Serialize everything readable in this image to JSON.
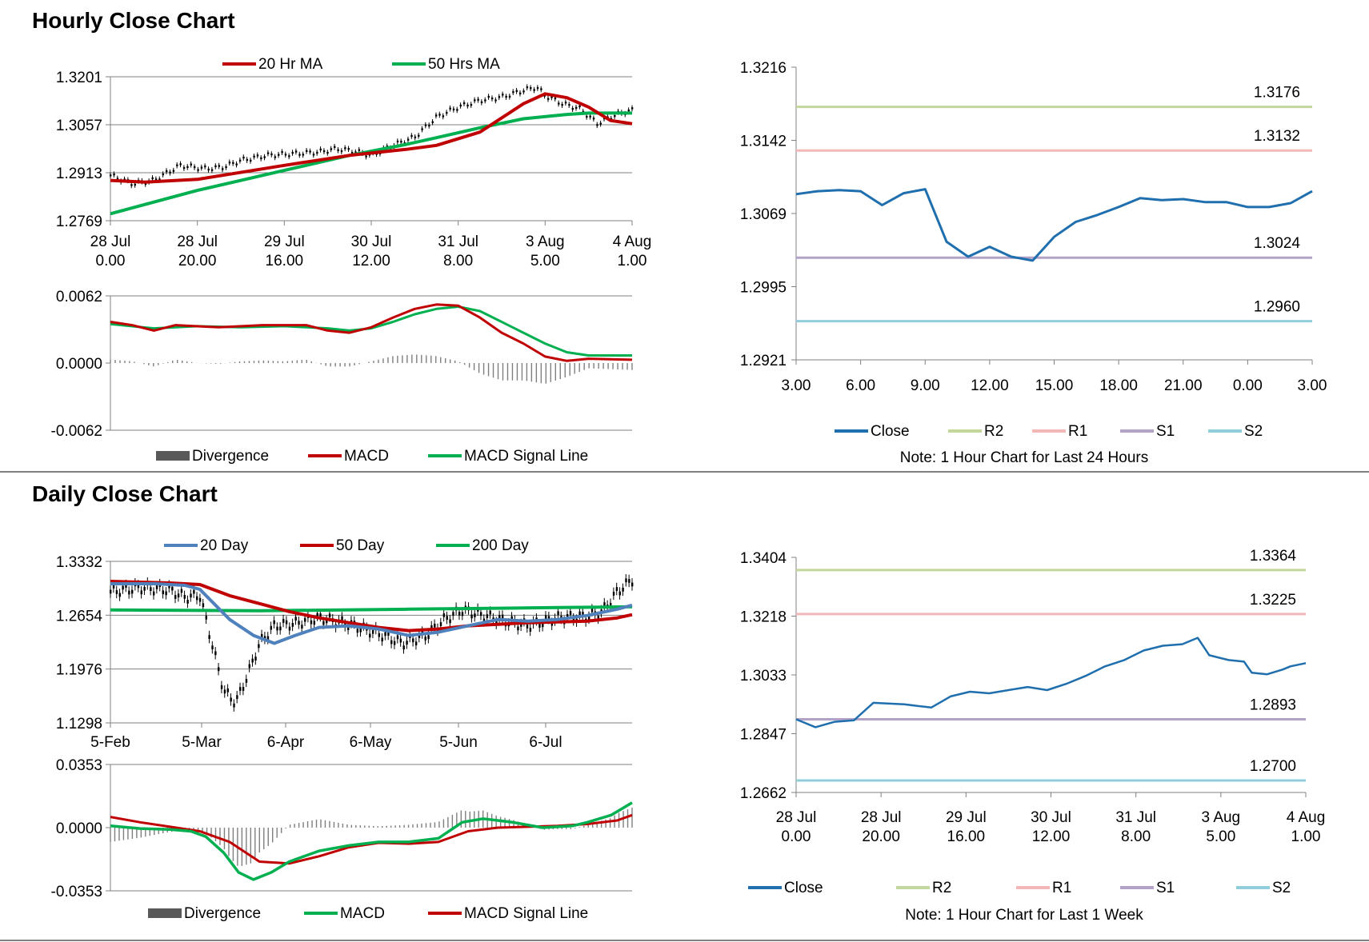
{
  "sections": {
    "hourly_title": "Hourly Close Chart",
    "daily_title": "Daily Close Chart"
  },
  "chart_data": [
    {
      "id": "hourly-price",
      "type": "line",
      "legend": [
        "20 Hr MA",
        "50 Hrs MA"
      ],
      "colors": {
        "ma20": "#c00000",
        "ma50": "#00b050",
        "candle": "#000000"
      },
      "y_ticks": [
        "1.3201",
        "1.3057",
        "1.2913",
        "1.2769"
      ],
      "ylim": [
        1.2769,
        1.3201
      ],
      "x_ticks": [
        [
          "28 Jul",
          "0.00"
        ],
        [
          "28 Jul",
          "20.00"
        ],
        [
          "29 Jul",
          "16.00"
        ],
        [
          "30 Jul",
          "12.00"
        ],
        [
          "31 Jul",
          "8.00"
        ],
        [
          "3 Aug",
          "5.00"
        ],
        [
          "4 Aug",
          "1.00"
        ]
      ],
      "ma20": [
        [
          0,
          1.289
        ],
        [
          8,
          1.2885
        ],
        [
          20,
          1.2893
        ],
        [
          28,
          1.291
        ],
        [
          40,
          1.2935
        ],
        [
          55,
          1.2965
        ],
        [
          68,
          1.2983
        ],
        [
          75,
          1.2995
        ],
        [
          85,
          1.3035
        ],
        [
          95,
          1.312
        ],
        [
          100,
          1.315
        ],
        [
          105,
          1.3138
        ],
        [
          110,
          1.311
        ],
        [
          115,
          1.307
        ],
        [
          120,
          1.306
        ]
      ],
      "ma50": [
        [
          0,
          1.279
        ],
        [
          20,
          1.286
        ],
        [
          40,
          1.292
        ],
        [
          55,
          1.2965
        ],
        [
          68,
          1.2998
        ],
        [
          75,
          1.3018
        ],
        [
          85,
          1.3048
        ],
        [
          95,
          1.3075
        ],
        [
          105,
          1.3088
        ],
        [
          110,
          1.3092
        ],
        [
          120,
          1.3092
        ]
      ],
      "close": [
        [
          0,
          1.2905
        ],
        [
          5,
          1.288
        ],
        [
          10,
          1.289
        ],
        [
          14,
          1.292
        ],
        [
          16,
          1.2935
        ],
        [
          22,
          1.2925
        ],
        [
          26,
          1.293
        ],
        [
          30,
          1.295
        ],
        [
          36,
          1.2965
        ],
        [
          42,
          1.297
        ],
        [
          48,
          1.2975
        ],
        [
          52,
          1.2985
        ],
        [
          56,
          1.2978
        ],
        [
          60,
          1.2965
        ],
        [
          65,
          1.2995
        ],
        [
          70,
          1.302
        ],
        [
          75,
          1.308
        ],
        [
          80,
          1.311
        ],
        [
          85,
          1.313
        ],
        [
          90,
          1.314
        ],
        [
          95,
          1.316
        ],
        [
          98,
          1.317
        ],
        [
          100,
          1.3145
        ],
        [
          104,
          1.312
        ],
        [
          108,
          1.3105
        ],
        [
          112,
          1.306
        ],
        [
          115,
          1.308
        ],
        [
          118,
          1.3095
        ],
        [
          120,
          1.31
        ]
      ]
    },
    {
      "id": "hourly-macd",
      "type": "line",
      "legend": [
        "Divergence",
        "MACD",
        "MACD Signal Line"
      ],
      "colors": {
        "macd": "#c00000",
        "signal": "#00b050",
        "divergence": "#595959"
      },
      "y_ticks": [
        "0.0062",
        "0.0000",
        "-0.0062"
      ],
      "ylim": [
        -0.0062,
        0.0062
      ],
      "macd": [
        [
          0,
          0.0038
        ],
        [
          5,
          0.0035
        ],
        [
          10,
          0.003
        ],
        [
          15,
          0.0035
        ],
        [
          25,
          0.0033
        ],
        [
          35,
          0.0035
        ],
        [
          45,
          0.0035
        ],
        [
          50,
          0.003
        ],
        [
          55,
          0.0028
        ],
        [
          60,
          0.0033
        ],
        [
          65,
          0.0042
        ],
        [
          70,
          0.005
        ],
        [
          75,
          0.0054
        ],
        [
          80,
          0.0053
        ],
        [
          85,
          0.0042
        ],
        [
          90,
          0.0028
        ],
        [
          95,
          0.0018
        ],
        [
          100,
          0.0006
        ],
        [
          105,
          0.0002
        ],
        [
          110,
          0.0004
        ],
        [
          120,
          0.0003
        ]
      ],
      "signal": [
        [
          0,
          0.0036
        ],
        [
          10,
          0.0032
        ],
        [
          20,
          0.0034
        ],
        [
          30,
          0.0033
        ],
        [
          40,
          0.0034
        ],
        [
          50,
          0.0032
        ],
        [
          55,
          0.003
        ],
        [
          60,
          0.0032
        ],
        [
          65,
          0.0038
        ],
        [
          70,
          0.0045
        ],
        [
          75,
          0.005
        ],
        [
          80,
          0.0052
        ],
        [
          85,
          0.0048
        ],
        [
          90,
          0.0038
        ],
        [
          95,
          0.0028
        ],
        [
          100,
          0.0018
        ],
        [
          105,
          0.001
        ],
        [
          110,
          0.0007
        ],
        [
          120,
          0.0007
        ]
      ]
    },
    {
      "id": "hourly-24h",
      "type": "line",
      "title_note": "Note: 1 Hour Chart for Last 24 Hours",
      "legend": [
        "Close",
        "R2",
        "R1",
        "S1",
        "S2"
      ],
      "colors": {
        "close": "#1f6fae",
        "r2": "#c3d69b",
        "r1": "#f2b8b8",
        "s1": "#b3a2c7",
        "s2": "#92cddc"
      },
      "y_ticks": [
        "1.3216",
        "1.3142",
        "1.3069",
        "1.2995",
        "1.2921"
      ],
      "ylim": [
        1.2921,
        1.3216
      ],
      "x_ticks": [
        "3.00",
        "6.00",
        "9.00",
        "12.00",
        "15.00",
        "18.00",
        "21.00",
        "0.00",
        "3.00"
      ],
      "levels": {
        "r2": "1.3176",
        "r1": "1.3132",
        "s1": "1.3024",
        "s2": "1.2960"
      },
      "close": [
        [
          0,
          1.3088
        ],
        [
          1,
          1.3091
        ],
        [
          2,
          1.3092
        ],
        [
          3,
          1.3091
        ],
        [
          4,
          1.3077
        ],
        [
          5,
          1.3089
        ],
        [
          6,
          1.3093
        ],
        [
          7,
          1.304
        ],
        [
          8,
          1.3025
        ],
        [
          9,
          1.3035
        ],
        [
          10,
          1.3025
        ],
        [
          11,
          1.3021
        ],
        [
          12,
          1.3045
        ],
        [
          13,
          1.306
        ],
        [
          14,
          1.3067
        ],
        [
          15,
          1.3075
        ],
        [
          16,
          1.3084
        ],
        [
          17,
          1.3082
        ],
        [
          18,
          1.3083
        ],
        [
          19,
          1.308
        ],
        [
          20,
          1.308
        ],
        [
          21,
          1.3075
        ],
        [
          22,
          1.3075
        ],
        [
          23,
          1.3079
        ],
        [
          24,
          1.3091
        ]
      ]
    },
    {
      "id": "daily-price",
      "type": "line",
      "legend": [
        "20 Day",
        "50 Day",
        "200 Day"
      ],
      "colors": {
        "ma20": "#4f81bd",
        "ma50": "#c00000",
        "ma200": "#00b050"
      },
      "y_ticks": [
        "1.3332",
        "1.2654",
        "1.1976",
        "1.1298"
      ],
      "ylim": [
        1.1298,
        1.3332
      ],
      "x_ticks": [
        "5-Feb",
        "5-Mar",
        "6-Apr",
        "6-May",
        "5-Jun",
        "6-Jul"
      ],
      "ma20": [
        [
          0,
          1.305
        ],
        [
          15,
          1.305
        ],
        [
          25,
          1.303
        ],
        [
          30,
          1.298
        ],
        [
          40,
          1.26
        ],
        [
          48,
          1.24
        ],
        [
          55,
          1.23
        ],
        [
          62,
          1.24
        ],
        [
          70,
          1.25
        ],
        [
          80,
          1.252
        ],
        [
          90,
          1.248
        ],
        [
          100,
          1.24
        ],
        [
          110,
          1.244
        ],
        [
          120,
          1.252
        ],
        [
          130,
          1.26
        ],
        [
          140,
          1.258
        ],
        [
          150,
          1.26
        ],
        [
          160,
          1.265
        ],
        [
          170,
          1.273
        ],
        [
          175,
          1.278
        ]
      ],
      "ma50": [
        [
          0,
          1.308
        ],
        [
          20,
          1.306
        ],
        [
          30,
          1.304
        ],
        [
          40,
          1.29
        ],
        [
          50,
          1.28
        ],
        [
          60,
          1.27
        ],
        [
          70,
          1.262
        ],
        [
          80,
          1.256
        ],
        [
          90,
          1.25
        ],
        [
          100,
          1.246
        ],
        [
          110,
          1.248
        ],
        [
          120,
          1.252
        ],
        [
          130,
          1.254
        ],
        [
          140,
          1.256
        ],
        [
          150,
          1.257
        ],
        [
          160,
          1.258
        ],
        [
          170,
          1.262
        ],
        [
          175,
          1.266
        ]
      ],
      "ma200": [
        [
          0,
          1.272
        ],
        [
          50,
          1.271
        ],
        [
          100,
          1.273
        ],
        [
          150,
          1.275
        ],
        [
          175,
          1.276
        ]
      ],
      "close": [
        [
          0,
          1.295
        ],
        [
          10,
          1.3
        ],
        [
          20,
          1.297
        ],
        [
          25,
          1.288
        ],
        [
          30,
          1.29
        ],
        [
          34,
          1.23
        ],
        [
          38,
          1.17
        ],
        [
          42,
          1.155
        ],
        [
          46,
          1.19
        ],
        [
          50,
          1.23
        ],
        [
          55,
          1.252
        ],
        [
          62,
          1.255
        ],
        [
          70,
          1.262
        ],
        [
          80,
          1.254
        ],
        [
          90,
          1.242
        ],
        [
          98,
          1.23
        ],
        [
          106,
          1.24
        ],
        [
          112,
          1.26
        ],
        [
          118,
          1.272
        ],
        [
          125,
          1.265
        ],
        [
          135,
          1.256
        ],
        [
          140,
          1.252
        ],
        [
          150,
          1.262
        ],
        [
          160,
          1.264
        ],
        [
          165,
          1.27
        ],
        [
          170,
          1.295
        ],
        [
          175,
          1.31
        ]
      ]
    },
    {
      "id": "daily-macd",
      "type": "line",
      "legend": [
        "Divergence",
        "MACD",
        "MACD Signal Line"
      ],
      "colors": {
        "macd": "#00b050",
        "signal": "#c00000",
        "divergence": "#595959"
      },
      "y_ticks": [
        "0.0353",
        "0.0000",
        "-0.0353"
      ],
      "ylim": [
        -0.0353,
        0.0353
      ],
      "macd": [
        [
          0,
          0.001
        ],
        [
          10,
          -0.0005
        ],
        [
          20,
          -0.001
        ],
        [
          27,
          -0.002
        ],
        [
          32,
          -0.005
        ],
        [
          38,
          -0.014
        ],
        [
          43,
          -0.025
        ],
        [
          48,
          -0.029
        ],
        [
          54,
          -0.025
        ],
        [
          60,
          -0.019
        ],
        [
          70,
          -0.013
        ],
        [
          80,
          -0.01
        ],
        [
          90,
          -0.008
        ],
        [
          100,
          -0.008
        ],
        [
          110,
          -0.006
        ],
        [
          118,
          0.003
        ],
        [
          125,
          0.005
        ],
        [
          135,
          0.003
        ],
        [
          145,
          0.0
        ],
        [
          155,
          0.001
        ],
        [
          160,
          0.003
        ],
        [
          168,
          0.007
        ],
        [
          175,
          0.014
        ]
      ],
      "signal": [
        [
          0,
          0.006
        ],
        [
          10,
          0.003
        ],
        [
          20,
          0.0005
        ],
        [
          30,
          -0.002
        ],
        [
          40,
          -0.008
        ],
        [
          50,
          -0.019
        ],
        [
          60,
          -0.02
        ],
        [
          70,
          -0.016
        ],
        [
          80,
          -0.011
        ],
        [
          90,
          -0.0085
        ],
        [
          100,
          -0.009
        ],
        [
          110,
          -0.008
        ],
        [
          120,
          -0.002
        ],
        [
          130,
          0.0
        ],
        [
          140,
          0.0005
        ],
        [
          150,
          0.001
        ],
        [
          160,
          0.002
        ],
        [
          170,
          0.004
        ],
        [
          175,
          0.007
        ]
      ]
    },
    {
      "id": "daily-week",
      "type": "line",
      "title_note": "Note: 1 Hour Chart for Last 1 Week",
      "legend": [
        "Close",
        "R2",
        "R1",
        "S1",
        "S2"
      ],
      "colors": {
        "close": "#1f6fae",
        "r2": "#c3d69b",
        "r1": "#f2b8b8",
        "s1": "#b3a2c7",
        "s2": "#92cddc"
      },
      "y_ticks": [
        "1.3404",
        "1.3218",
        "1.3033",
        "1.2847",
        "1.2662"
      ],
      "ylim": [
        1.2662,
        1.3404
      ],
      "x_ticks": [
        [
          "28 Jul",
          "0.00"
        ],
        [
          "28 Jul",
          "20.00"
        ],
        [
          "29 Jul",
          "16.00"
        ],
        [
          "30 Jul",
          "12.00"
        ],
        [
          "31 Jul",
          "8.00"
        ],
        [
          "3 Aug",
          "5.00"
        ],
        [
          "4 Aug",
          "1.00"
        ]
      ],
      "levels": {
        "r2": "1.3364",
        "r1": "1.3225",
        "s1": "1.2893",
        "s2": "1.2700"
      },
      "close": [
        [
          0,
          1.2893
        ],
        [
          5,
          1.2868
        ],
        [
          10,
          1.2885
        ],
        [
          15,
          1.289
        ],
        [
          20,
          1.2945
        ],
        [
          28,
          1.294
        ],
        [
          35,
          1.293
        ],
        [
          40,
          1.2965
        ],
        [
          45,
          1.298
        ],
        [
          50,
          1.2975
        ],
        [
          55,
          1.2985
        ],
        [
          60,
          1.2995
        ],
        [
          65,
          1.2985
        ],
        [
          70,
          1.3005
        ],
        [
          75,
          1.303
        ],
        [
          80,
          1.306
        ],
        [
          85,
          1.308
        ],
        [
          90,
          1.311
        ],
        [
          95,
          1.3125
        ],
        [
          100,
          1.313
        ],
        [
          104,
          1.315
        ],
        [
          107,
          1.3095
        ],
        [
          112,
          1.308
        ],
        [
          116,
          1.3075
        ],
        [
          118,
          1.304
        ],
        [
          122,
          1.3035
        ],
        [
          126,
          1.305
        ],
        [
          128,
          1.306
        ],
        [
          132,
          1.307
        ]
      ]
    }
  ]
}
